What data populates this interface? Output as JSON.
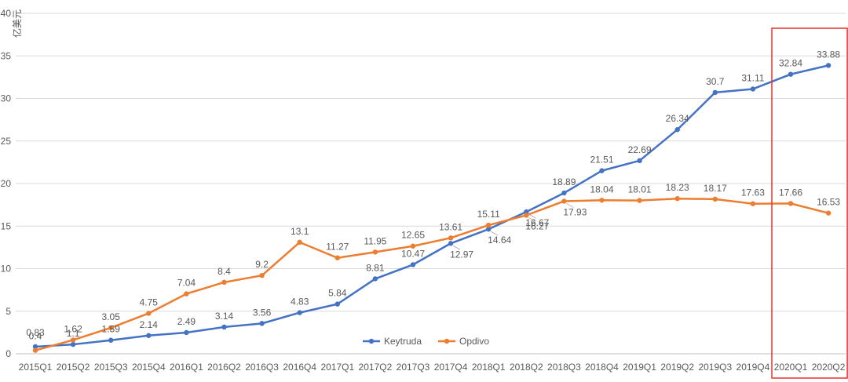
{
  "chart_data": {
    "type": "line",
    "ylabel": "亿美元",
    "ylim": [
      0,
      40
    ],
    "yticks": [
      0,
      5,
      10,
      15,
      20,
      25,
      30,
      35,
      40
    ],
    "grid": true,
    "legend_position": "bottom-center",
    "categories": [
      "2015Q1",
      "2015Q2",
      "2015Q3",
      "2015Q4",
      "2016Q1",
      "2016Q2",
      "2016Q3",
      "2016Q4",
      "2017Q1",
      "2017Q2",
      "2017Q3",
      "2017Q4",
      "2018Q1",
      "2018Q2",
      "2018Q3",
      "2018Q4",
      "2019Q1",
      "2019Q2",
      "2019Q3",
      "2019Q4",
      "2020Q1",
      "2020Q2"
    ],
    "series": [
      {
        "name": "Keytruda",
        "color": "#4472c4",
        "values": [
          0.83,
          1.1,
          1.59,
          2.14,
          2.49,
          3.14,
          3.56,
          4.83,
          5.84,
          8.81,
          10.47,
          12.97,
          14.64,
          16.67,
          18.89,
          21.51,
          22.69,
          26.34,
          30.7,
          31.11,
          32.84,
          33.88
        ]
      },
      {
        "name": "Opdivo",
        "color": "#ed7d31",
        "values": [
          0.4,
          1.62,
          3.05,
          4.75,
          7.04,
          8.4,
          9.2,
          13.1,
          11.27,
          11.95,
          12.65,
          13.61,
          15.11,
          16.27,
          17.93,
          18.04,
          18.01,
          18.23,
          18.17,
          17.63,
          17.66,
          16.53
        ]
      }
    ],
    "highlight": {
      "from": "2020Q1",
      "to": "2020Q2",
      "color": "#e8312f"
    }
  }
}
